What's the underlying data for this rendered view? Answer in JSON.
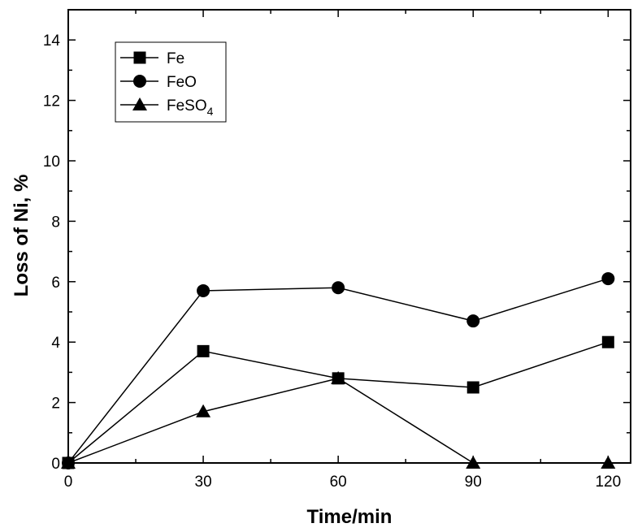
{
  "chart_data": {
    "type": "line",
    "xlabel": "Time/min",
    "ylabel": "Loss of Ni, %",
    "xlim": [
      0,
      125
    ],
    "ylim": [
      0,
      15
    ],
    "xticks": [
      0,
      30,
      60,
      90,
      120
    ],
    "yticks": [
      0,
      2,
      4,
      6,
      8,
      10,
      12,
      14
    ],
    "grid": false,
    "legend_position": "top-left",
    "series": [
      {
        "name": "Fe",
        "marker": "square",
        "color": "#000000",
        "x": [
          0,
          30,
          60,
          90,
          120
        ],
        "y": [
          0,
          3.7,
          2.8,
          2.5,
          4.0
        ]
      },
      {
        "name": "FeO",
        "marker": "circle",
        "color": "#000000",
        "x": [
          0,
          30,
          60,
          90,
          120
        ],
        "y": [
          0,
          5.7,
          5.8,
          4.7,
          6.1
        ]
      },
      {
        "name": "FeSO4",
        "name_main": "FeSO",
        "name_sub": "4",
        "marker": "triangle",
        "color": "#000000",
        "x": [
          0,
          30,
          60,
          90,
          120
        ],
        "y": [
          0,
          1.7,
          2.8,
          0,
          0
        ]
      }
    ]
  }
}
